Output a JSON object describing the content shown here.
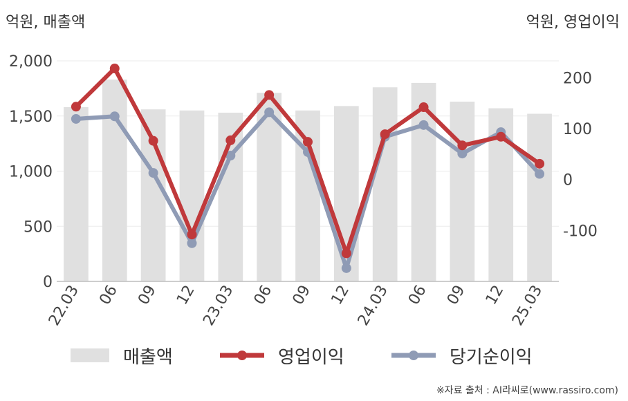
{
  "chart_data": {
    "type": "bar+line",
    "left_axis_label": "억원, 매출액",
    "right_axis_label": "억원, 영업이익",
    "categories": [
      "22.03",
      "06",
      "09",
      "12",
      "23.03",
      "06",
      "09",
      "12",
      "24.03",
      "06",
      "09",
      "12",
      "25.03"
    ],
    "left_axis": {
      "ticks": [
        "0",
        "500",
        "1,000",
        "1,500",
        "2,000"
      ],
      "ylim": [
        0,
        2000
      ]
    },
    "right_axis": {
      "ticks": [
        "-100",
        "0",
        "100",
        "200"
      ],
      "ylim": [
        -200,
        233
      ]
    },
    "series": [
      {
        "name": "매출액",
        "type": "bar",
        "axis": "left",
        "color": "#e0e0e0",
        "values": [
          1580,
          1830,
          1560,
          1550,
          1530,
          1710,
          1550,
          1590,
          1760,
          1800,
          1630,
          1570,
          1520
        ]
      },
      {
        "name": "영업이익",
        "type": "line",
        "axis": "right",
        "color": "#c0393b",
        "values": [
          143,
          218,
          76,
          -108,
          77,
          166,
          74,
          -145,
          89,
          142,
          67,
          84,
          31
        ]
      },
      {
        "name": "당기순이익",
        "type": "line",
        "axis": "right",
        "color": "#8f9bb5",
        "values": [
          119,
          124,
          13,
          -125,
          47,
          132,
          54,
          -174,
          84,
          107,
          51,
          93,
          11
        ]
      }
    ],
    "legend_position": "bottom"
  },
  "source_text": "※자료 출처 : AI라씨로(www.rassiro.com)"
}
